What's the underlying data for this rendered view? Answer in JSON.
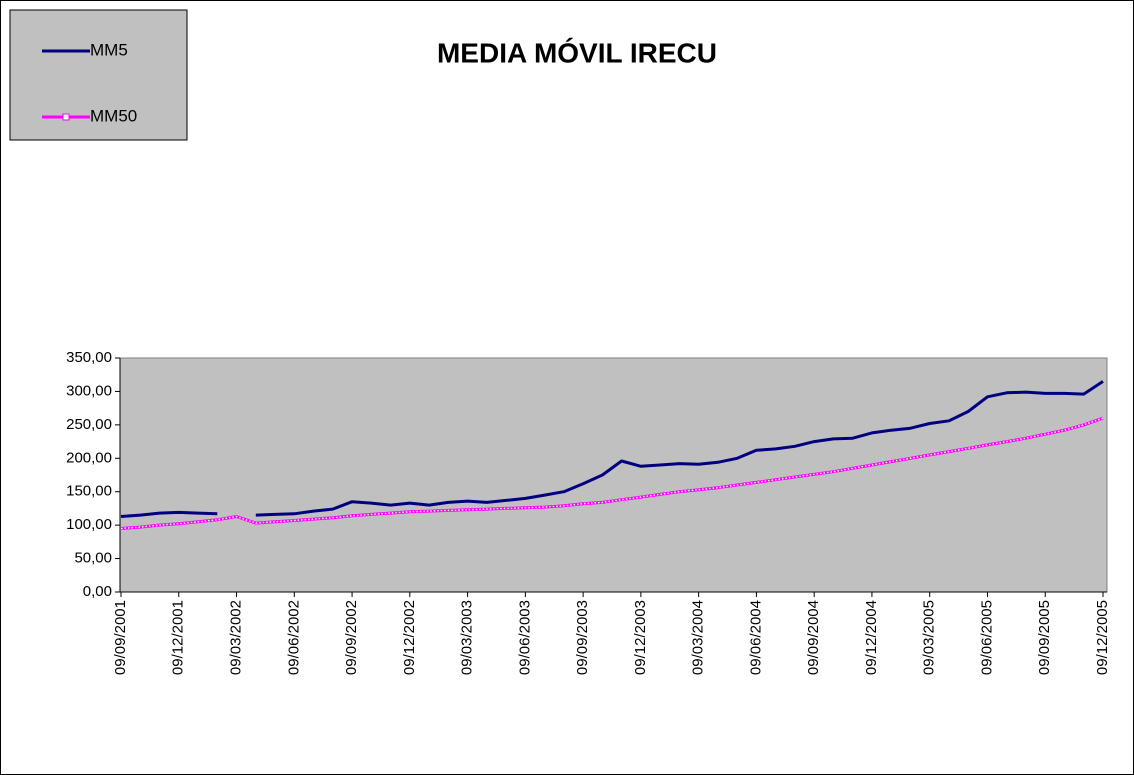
{
  "chart_data": {
    "type": "line",
    "title": "MEDIA MÓVIL IRECU",
    "categories": [
      "09/09/2001",
      null,
      null,
      "09/12/2001",
      null,
      null,
      "09/03/2002",
      null,
      null,
      "09/06/2002",
      null,
      null,
      "09/09/2002",
      null,
      null,
      "09/12/2002",
      null,
      null,
      "09/03/2003",
      null,
      null,
      "09/06/2003",
      null,
      null,
      "09/09/2003",
      null,
      null,
      "09/12/2003",
      null,
      null,
      "09/03/2004",
      null,
      null,
      "09/06/2004",
      null,
      null,
      "09/09/2004",
      null,
      null,
      "09/12/2004",
      null,
      null,
      "09/03/2005",
      null,
      null,
      "09/06/2005",
      null,
      null,
      "09/09/2005",
      null,
      null,
      "09/12/2005"
    ],
    "series": [
      {
        "name": "MM5",
        "color": "#000080",
        "values": [
          113,
          115,
          118,
          119,
          118,
          117,
          null,
          115,
          116,
          117,
          121,
          124,
          135,
          133,
          130,
          133,
          130,
          134,
          136,
          134,
          137,
          140,
          145,
          150,
          162,
          175,
          196,
          188,
          190,
          192,
          191,
          194,
          200,
          212,
          214,
          218,
          225,
          229,
          230,
          238,
          242,
          245,
          252,
          256,
          270,
          292,
          298,
          299,
          297,
          297,
          296,
          315
        ]
      },
      {
        "name": "MM50",
        "color": "#ff00ff",
        "values": [
          95,
          97,
          100,
          102,
          105,
          108,
          113,
          103,
          105,
          107,
          109,
          111,
          114,
          116,
          118,
          120,
          121,
          122,
          123,
          124,
          125,
          126,
          127,
          129,
          132,
          134,
          138,
          142,
          146,
          150,
          153,
          156,
          160,
          164,
          168,
          172,
          176,
          180,
          185,
          190,
          195,
          200,
          205,
          210,
          215,
          220,
          225,
          230,
          236,
          242,
          250,
          260
        ]
      }
    ],
    "ylim": [
      0,
      350
    ],
    "yticks": [
      {
        "value": 0,
        "label": "0,00"
      },
      {
        "value": 50,
        "label": "50,00"
      },
      {
        "value": 100,
        "label": "100,00"
      },
      {
        "value": 150,
        "label": "150,00"
      },
      {
        "value": 200,
        "label": "200,00"
      },
      {
        "value": 250,
        "label": "250,00"
      },
      {
        "value": 300,
        "label": "300,00"
      },
      {
        "value": 350,
        "label": "350,00"
      }
    ],
    "grid": false,
    "legend": "top-left"
  }
}
